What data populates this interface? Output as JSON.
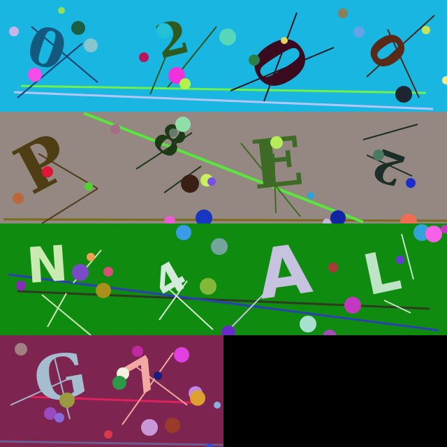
{
  "strips": [
    {
      "background": "#18b6e0",
      "characters": [
        {
          "text": "0",
          "color": "#13597e"
        },
        {
          "text": "2",
          "color": "#2f5a1e"
        },
        {
          "text": "0",
          "color": "#3a0a1e"
        },
        {
          "text": "0",
          "color": "#5a2a18"
        }
      ]
    },
    {
      "background": "#958781",
      "characters": [
        {
          "text": "P",
          "color": "#4f3d14"
        },
        {
          "text": "8",
          "color": "#1d3a17"
        },
        {
          "text": "E",
          "color": "#3d6b25"
        },
        {
          "text": "2",
          "color": "#1a2d26"
        }
      ]
    },
    {
      "background": "#0f8c0f",
      "characters": [
        {
          "text": "N",
          "color": "#c9eab1"
        },
        {
          "text": "4",
          "color": "#d4eadb"
        },
        {
          "text": "A",
          "color": "#c6c2e0"
        },
        {
          "text": "L",
          "color": "#bde4c4"
        }
      ]
    },
    {
      "background": "#7e2450",
      "characters": [
        {
          "text": "G",
          "color": "#a6bccf"
        },
        {
          "text": "7",
          "color": "#f2a9a4"
        }
      ]
    }
  ]
}
